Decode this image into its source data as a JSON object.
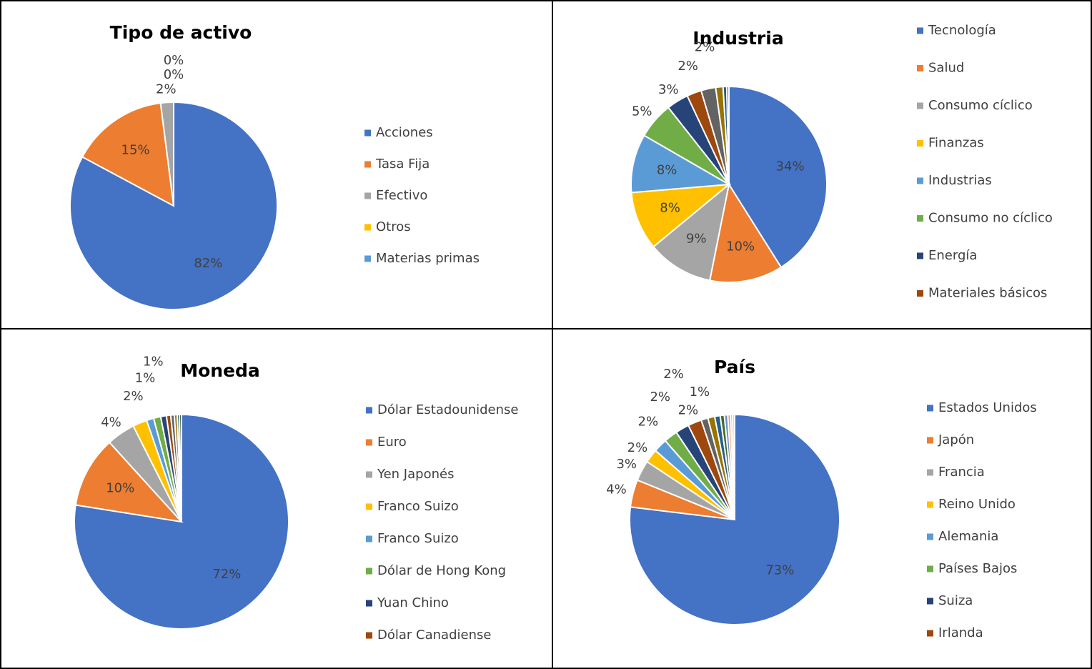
{
  "chart_data": [
    {
      "type": "pie",
      "title": "Tipo de activo",
      "categories": [
        "Acciones",
        "Tasa Fija",
        "Efectivo",
        "Otros",
        "Materias primas"
      ],
      "values": [
        82,
        15,
        2,
        0,
        0
      ],
      "value_labels": [
        "82%",
        "15%",
        "2%",
        "0%",
        "0%"
      ],
      "colors": [
        "#4472c4",
        "#ed7d31",
        "#a5a5a5",
        "#ffc000",
        "#5b9bd5"
      ]
    },
    {
      "type": "pie",
      "title": "Industria",
      "categories": [
        "Tecnología",
        "Salud",
        "Consumo cíclico",
        "Finanzas",
        "Industrias",
        "Consumo no cíclico",
        "Energía",
        "Materiales básicos",
        null,
        null,
        null,
        null
      ],
      "values": [
        34,
        10,
        9,
        8,
        8,
        5,
        3,
        2,
        2,
        1,
        0.5,
        0.3
      ],
      "value_labels": [
        "34%",
        "10%",
        "9%",
        "8%",
        "8%",
        "5%",
        "3%",
        "2%",
        "2%",
        null,
        null,
        null
      ],
      "colors": [
        "#4472c4",
        "#ed7d31",
        "#a5a5a5",
        "#ffc000",
        "#5b9bd5",
        "#70ad47",
        "#264478",
        "#9e480e",
        "#636363",
        "#997300",
        "#255e91",
        "#43682b"
      ]
    },
    {
      "type": "pie",
      "title": "Moneda",
      "categories": [
        "Dólar Estadounidense",
        "Euro",
        "Yen Japonés",
        "Franco Suizo",
        "Franco Suizo",
        "Dólar de Hong Kong",
        "Yuan Chino",
        "Dólar Canadiense",
        null,
        null,
        null,
        null
      ],
      "values": [
        72,
        10,
        4,
        2,
        1,
        1,
        0.8,
        0.6,
        0.5,
        0.4,
        0.3,
        0.3
      ],
      "value_labels": [
        "72%",
        "10%",
        "4%",
        "2%",
        "1%",
        "1%",
        null,
        null,
        null,
        null,
        null,
        null
      ],
      "colors": [
        "#4472c4",
        "#ed7d31",
        "#a5a5a5",
        "#ffc000",
        "#5b9bd5",
        "#70ad47",
        "#264478",
        "#9e480e",
        "#636363",
        "#997300",
        "#255e91",
        "#43682b"
      ]
    },
    {
      "type": "pie",
      "title": "País",
      "categories": [
        "Estados Unidos",
        "Japón",
        "Francia",
        "Reino Unido",
        "Alemania",
        "Países Bajos",
        "Suiza",
        "Irlanda",
        null,
        null,
        null,
        null,
        null,
        null,
        null,
        null
      ],
      "values": [
        73,
        4,
        3,
        2,
        2,
        2,
        2,
        2,
        1,
        1,
        0.8,
        0.6,
        0.5,
        0.4,
        0.3,
        0.3
      ],
      "value_labels": [
        "73%",
        "4%",
        "3%",
        "2%",
        "2%",
        "2%",
        "2%",
        "2%",
        "1%",
        null,
        null,
        null,
        null,
        null,
        null,
        null
      ],
      "colors": [
        "#4472c4",
        "#ed7d31",
        "#a5a5a5",
        "#ffc000",
        "#5b9bd5",
        "#70ad47",
        "#264478",
        "#9e480e",
        "#636363",
        "#997300",
        "#255e91",
        "#43682b",
        "#698ed0",
        "#f1975a",
        "#b7b7b7",
        "#ffcd33"
      ]
    }
  ]
}
